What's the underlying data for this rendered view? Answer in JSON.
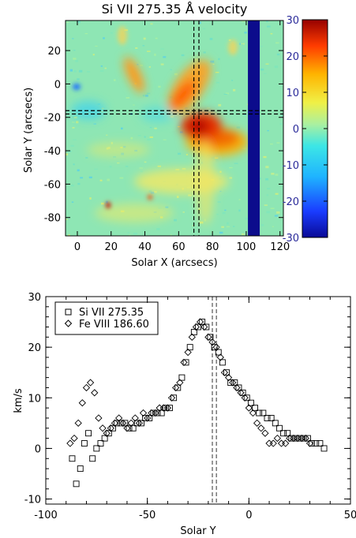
{
  "chart_data": [
    {
      "type": "heatmap",
      "title": "Si VII 275.35 Å velocity",
      "xlabel": "Solar X (arcsecs)",
      "ylabel": "Solar Y (arcsecs)",
      "xlim": [
        -7,
        122
      ],
      "ylim": [
        -91,
        38
      ],
      "x_ticks": [
        "0",
        "20",
        "40",
        "60",
        "80",
        "100",
        "120"
      ],
      "y_ticks": [
        "20",
        "0",
        "-20",
        "-40",
        "-60",
        "-80"
      ],
      "colorbar": {
        "range": [
          -30,
          30
        ],
        "ticks": [
          "30",
          "20",
          "10",
          "0",
          "-10",
          "-20",
          "-30"
        ]
      },
      "dashed_lines": {
        "x": [
          69,
          72
        ],
        "y": [
          -16,
          -18
        ]
      },
      "data_gap_x": [
        101,
        108
      ],
      "features": [
        {
          "x": 70,
          "y": -20,
          "value": 25
        },
        {
          "x": 60,
          "y": -10,
          "value": 20
        },
        {
          "x": 80,
          "y": -25,
          "value": 12
        },
        {
          "x": 30,
          "y": 0,
          "value": 10
        },
        {
          "x": 40,
          "y": -75,
          "value": 5
        },
        {
          "x": 5,
          "y": -10,
          "value": -8
        }
      ]
    },
    {
      "type": "scatter",
      "xlabel": "Solar Y",
      "ylabel": "km/s",
      "xlim": [
        -100,
        50
      ],
      "ylim": [
        -11,
        30
      ],
      "x_ticks": [
        "-100",
        "-50",
        "0",
        "50"
      ],
      "y_ticks": [
        "30",
        "20",
        "10",
        "0",
        "-10"
      ],
      "legend": "top-left",
      "dashed_x": [
        -16,
        -18
      ],
      "series": [
        {
          "name": "Si VII 275.35",
          "marker": "square",
          "x": [
            -87,
            -85,
            -83,
            -81,
            -79,
            -77,
            -75,
            -73,
            -71,
            -69,
            -67,
            -65,
            -63,
            -61,
            -59,
            -57,
            -55,
            -53,
            -51,
            -49,
            -47,
            -45,
            -43,
            -41,
            -39,
            -37,
            -35,
            -33,
            -31,
            -29,
            -27,
            -25,
            -23,
            -21,
            -19,
            -17,
            -15,
            -13,
            -11,
            -9,
            -7,
            -5,
            -3,
            -1,
            1,
            3,
            5,
            7,
            9,
            11,
            13,
            15,
            17,
            19,
            21,
            23,
            25,
            27,
            29,
            31,
            33,
            35,
            37
          ],
          "values": [
            -2,
            -7,
            -4,
            1,
            3,
            -2,
            0,
            1,
            2,
            3,
            4,
            5,
            5,
            5,
            4,
            4,
            5,
            5,
            6,
            6,
            7,
            7,
            7,
            8,
            8,
            10,
            12,
            14,
            17,
            20,
            23,
            24,
            25,
            24,
            22,
            20,
            19,
            17,
            15,
            13,
            13,
            12,
            11,
            10,
            9,
            8,
            7,
            7,
            6,
            6,
            5,
            4,
            3,
            3,
            2,
            2,
            2,
            2,
            2,
            1,
            1,
            1,
            0
          ]
        },
        {
          "name": "Fe VIII 186.60",
          "marker": "diamond",
          "x": [
            -88,
            -86,
            -84,
            -82,
            -80,
            -78,
            -76,
            -74,
            -72,
            -70,
            -68,
            -66,
            -64,
            -62,
            -60,
            -58,
            -56,
            -54,
            -52,
            -50,
            -48,
            -46,
            -44,
            -42,
            -40,
            -38,
            -36,
            -34,
            -32,
            -30,
            -28,
            -26,
            -24,
            -22,
            -20,
            -18,
            -16,
            -14,
            -12,
            -10,
            -8,
            -6,
            -4,
            -2,
            0,
            2,
            4,
            6,
            8,
            10,
            12,
            14,
            16,
            18,
            20,
            22,
            24,
            26,
            28,
            30
          ],
          "values": [
            1,
            2,
            5,
            9,
            12,
            13,
            11,
            6,
            4,
            3,
            4,
            5,
            6,
            5,
            4,
            5,
            6,
            5,
            7,
            6,
            7,
            7,
            8,
            8,
            8,
            10,
            12,
            13,
            17,
            19,
            22,
            24,
            25,
            24,
            22,
            21,
            20,
            18,
            15,
            14,
            13,
            12,
            11,
            10,
            8,
            7,
            5,
            4,
            3,
            1,
            1,
            2,
            1,
            1,
            2,
            2,
            2,
            2,
            2,
            1
          ]
        }
      ]
    }
  ]
}
